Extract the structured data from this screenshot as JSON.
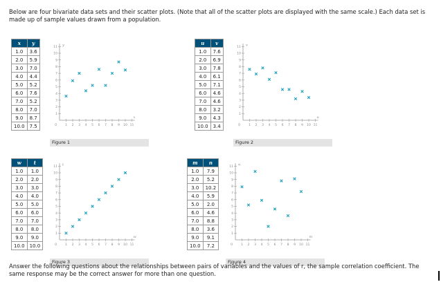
{
  "intro_text": "Below are four bivariate data sets and their scatter plots. (Note that all of the scatter plots are displayed with the same scale.) Each data set is made up of sample values drawn from a population.",
  "outro_text": "Answer the following questions about the relationships between pairs of variables and the values of r, the sample correlation coefficient. The same response may be the correct answer for more than one question.",
  "marker_color": "#1a9fbf",
  "datasets": [
    {
      "xname": "x",
      "yname": "y",
      "caption": "Figure 1",
      "xs": [
        "1.0",
        "2.0",
        "3.0",
        "4.0",
        "5.0",
        "6.0",
        "7.0",
        "8.0",
        "9.0",
        "10.0"
      ],
      "ys": [
        "3.6",
        "5.9",
        "7.0",
        "4.4",
        "5.2",
        "7.6",
        "5.2",
        "7.0",
        "8.7",
        "7.5"
      ]
    },
    {
      "xname": "u",
      "yname": "v",
      "caption": "Figure 2",
      "xs": [
        "1.0",
        "2.0",
        "3.0",
        "4.0",
        "5.0",
        "6.0",
        "7.0",
        "8.0",
        "9.0",
        "10.0"
      ],
      "ys": [
        "7.6",
        "6.9",
        "7.8",
        "6.1",
        "7.1",
        "4.6",
        "4.6",
        "3.2",
        "4.3",
        "3.4"
      ]
    },
    {
      "xname": "w",
      "yname": "t",
      "caption": "Figure 3",
      "xs": [
        "1.0",
        "2.0",
        "3.0",
        "4.0",
        "5.0",
        "6.0",
        "7.0",
        "8.0",
        "9.0",
        "10.0"
      ],
      "ys": [
        "1.0",
        "2.0",
        "3.0",
        "4.0",
        "5.0",
        "6.0",
        "7.0",
        "8.0",
        "9.0",
        "10.0"
      ]
    },
    {
      "xname": "m",
      "yname": "n",
      "caption": "Figure 4",
      "xs": [
        "1.0",
        "2.0",
        "3.0",
        "4.0",
        "5.0",
        "6.0",
        "7.0",
        "8.0",
        "9.0",
        "10.0"
      ],
      "ys": [
        "7.9",
        "5.2",
        "10.2",
        "5.9",
        "2.0",
        "4.6",
        "8.8",
        "3.6",
        "9.1",
        "7.2"
      ]
    }
  ],
  "chart_data": [
    {
      "type": "scatter",
      "title": "Figure 1",
      "xlabel": "x",
      "ylabel": "y",
      "xlim": [
        0,
        11
      ],
      "ylim": [
        0,
        11
      ],
      "x": [
        1,
        2,
        3,
        4,
        5,
        6,
        7,
        8,
        9,
        10
      ],
      "y": [
        3.6,
        5.9,
        7.0,
        4.4,
        5.2,
        7.6,
        5.2,
        7.0,
        8.7,
        7.5
      ],
      "xticks": [
        "1",
        "2",
        "3",
        "4",
        "5",
        "6",
        "7",
        "8",
        "9",
        "10",
        "11"
      ],
      "yticks": [
        "1",
        "2",
        "3",
        "4",
        "5",
        "6",
        "7",
        "8",
        "9",
        "10",
        "11"
      ]
    },
    {
      "type": "scatter",
      "title": "Figure 2",
      "xlabel": "u",
      "ylabel": "v",
      "xlim": [
        0,
        11
      ],
      "ylim": [
        0,
        11
      ],
      "x": [
        1,
        2,
        3,
        4,
        5,
        6,
        7,
        8,
        9,
        10
      ],
      "y": [
        7.6,
        6.9,
        7.8,
        6.1,
        7.1,
        4.6,
        4.6,
        3.2,
        4.3,
        3.4
      ],
      "xticks": [
        "1",
        "2",
        "3",
        "4",
        "5",
        "6",
        "7",
        "8",
        "9",
        "10",
        "11"
      ],
      "yticks": [
        "1",
        "2",
        "3",
        "4",
        "5",
        "6",
        "7",
        "8",
        "9",
        "10",
        "11"
      ]
    },
    {
      "type": "scatter",
      "title": "Figure 3",
      "xlabel": "w",
      "ylabel": "t",
      "xlim": [
        0,
        11
      ],
      "ylim": [
        0,
        11
      ],
      "x": [
        1,
        2,
        3,
        4,
        5,
        6,
        7,
        8,
        9,
        10
      ],
      "y": [
        1,
        2,
        3,
        4,
        5,
        6,
        7,
        8,
        9,
        10
      ],
      "xticks": [
        "1",
        "2",
        "3",
        "4",
        "5",
        "6",
        "7",
        "8",
        "9",
        "10",
        "11"
      ],
      "yticks": [
        "1",
        "2",
        "3",
        "4",
        "5",
        "6",
        "7",
        "8",
        "9",
        "10",
        "11"
      ]
    },
    {
      "type": "scatter",
      "title": "Figure 4",
      "xlabel": "m",
      "ylabel": "n",
      "xlim": [
        0,
        11
      ],
      "ylim": [
        0,
        11
      ],
      "x": [
        1,
        2,
        3,
        4,
        5,
        6,
        7,
        8,
        9,
        10
      ],
      "y": [
        7.9,
        5.2,
        10.2,
        5.9,
        2.0,
        4.6,
        8.8,
        3.6,
        9.1,
        7.2
      ],
      "xticks": [
        "1",
        "2",
        "3",
        "4",
        "5",
        "6",
        "7",
        "8",
        "9",
        "10",
        "11"
      ],
      "yticks": [
        "1",
        "2",
        "3",
        "4",
        "5",
        "6",
        "7",
        "8",
        "9",
        "10",
        "11"
      ]
    }
  ]
}
